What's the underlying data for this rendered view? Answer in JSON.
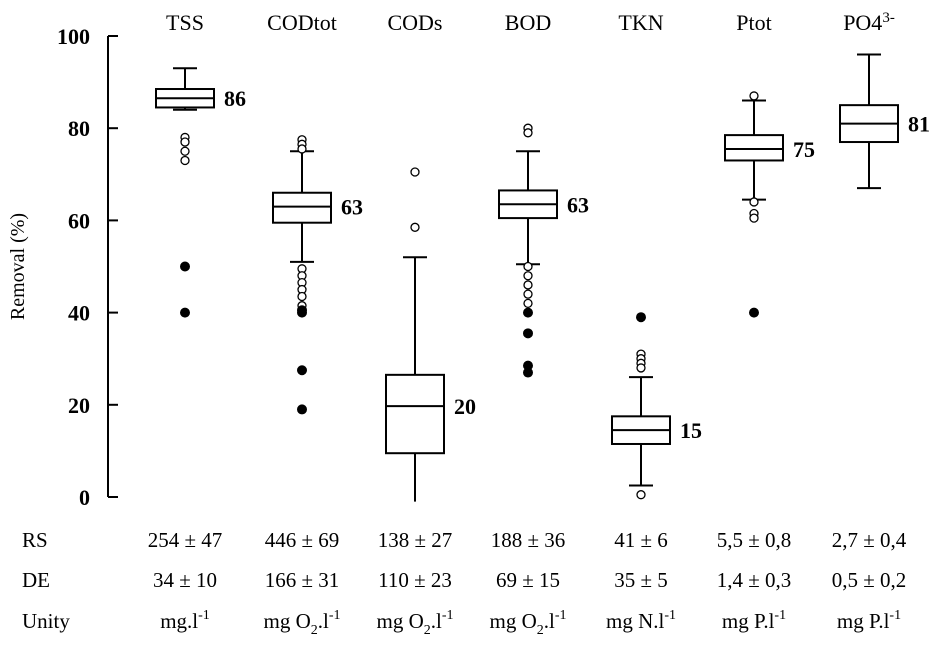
{
  "chart_data": {
    "type": "boxplot",
    "ylabel": "Removal (%)",
    "ylim": [
      0,
      100
    ],
    "yticks": [
      0,
      20,
      40,
      60,
      80,
      100
    ],
    "categories": [
      {
        "label": "TSS",
        "median_label": "86",
        "whisker_low": 84,
        "q1": 84.5,
        "median": 86.5,
        "q3": 88.5,
        "whisker_high": 93,
        "outliers_open": [
          78,
          77,
          75,
          73
        ],
        "outliers_filled": [
          50,
          40
        ]
      },
      {
        "label": "CODtot",
        "median_label": "63",
        "whisker_low": 51,
        "q1": 59.5,
        "median": 63,
        "q3": 66,
        "whisker_high": 75,
        "outliers_open": [
          77.5,
          76.5,
          75.5,
          49.5,
          48,
          46.5,
          45,
          43.5,
          41.5
        ],
        "outliers_filled": [
          40.5,
          40,
          27.5,
          19
        ]
      },
      {
        "label": "CODs",
        "median_label": "20",
        "whisker_low": -1,
        "q1": 9.5,
        "median": 19.7,
        "q3": 26.5,
        "whisker_high": 52,
        "outliers_open": [
          70.5,
          58.5
        ],
        "outliers_filled": []
      },
      {
        "label": "BOD",
        "median_label": "63",
        "whisker_low": 50.5,
        "q1": 60.5,
        "median": 63.5,
        "q3": 66.5,
        "whisker_high": 75,
        "outliers_open": [
          80,
          79,
          50,
          48,
          46,
          44,
          42
        ],
        "outliers_filled": [
          40,
          35.5,
          28.5,
          27
        ]
      },
      {
        "label": "TKN",
        "median_label": "15",
        "whisker_low": 2.5,
        "q1": 11.5,
        "median": 14.5,
        "q3": 17.5,
        "whisker_high": 26,
        "outliers_open": [
          31,
          30,
          29,
          28,
          0.5
        ],
        "outliers_filled": [
          39
        ]
      },
      {
        "label": "Ptot",
        "median_label": "75",
        "whisker_low": 64.5,
        "q1": 73,
        "median": 75.5,
        "q3": 78.5,
        "whisker_high": 86,
        "outliers_open": [
          87,
          64,
          61.5,
          60.5
        ],
        "outliers_filled": [
          40
        ]
      },
      {
        "label": "PO4",
        "label_sup": "3-",
        "median_label": "81",
        "whisker_low": 67,
        "q1": 77,
        "median": 81,
        "q3": 85,
        "whisker_high": 96,
        "outliers_open": [],
        "outliers_filled": []
      }
    ]
  },
  "table": {
    "rows": [
      {
        "label": "RS",
        "cells": [
          "254 ± 47",
          "446 ± 69",
          "138 ± 27",
          "188 ± 36",
          "41 ± 6",
          "5,5 ± 0,8",
          "2,7 ± 0,4"
        ]
      },
      {
        "label": "DE",
        "cells": [
          "34 ± 10",
          "166 ± 31",
          "110 ± 23",
          "69 ± 15",
          "35 ± 5",
          "1,4 ± 0,3",
          "0,5 ± 0,2"
        ]
      }
    ],
    "unity": {
      "label": "Unity",
      "cells": [
        {
          "base": "mg.l",
          "sub": "",
          "tail": "",
          "sup": "-1"
        },
        {
          "base": "mg O",
          "sub": "2",
          "tail": ".l",
          "sup": "-1"
        },
        {
          "base": "mg O",
          "sub": "2",
          "tail": ".l",
          "sup": "-1"
        },
        {
          "base": "mg O",
          "sub": "2",
          "tail": ".l",
          "sup": "-1"
        },
        {
          "base": "mg N.l",
          "sub": "",
          "tail": "",
          "sup": "-1"
        },
        {
          "base": "mg P.l",
          "sub": "",
          "tail": "",
          "sup": "-1"
        },
        {
          "base": "mg P.l",
          "sub": "",
          "tail": "",
          "sup": "-1"
        }
      ]
    }
  }
}
